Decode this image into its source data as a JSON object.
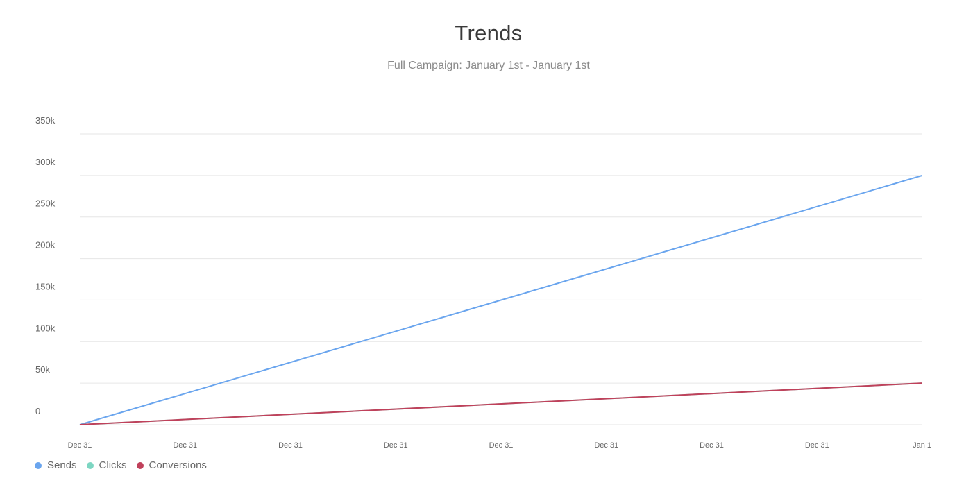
{
  "chart_data": {
    "type": "line",
    "title": "Trends",
    "subtitle": "Full Campaign: January 1st - January 1st",
    "xlabel": "",
    "ylabel": "",
    "x_tick_labels": [
      "Dec 31",
      "Dec 31",
      "Dec 31",
      "Dec 31",
      "Dec 31",
      "Dec 31",
      "Dec 31",
      "Dec 31",
      "Jan 1"
    ],
    "x": [
      0,
      1
    ],
    "ylim": [
      0,
      350000
    ],
    "y_ticks": [
      0,
      50000,
      100000,
      150000,
      200000,
      250000,
      300000,
      350000
    ],
    "y_tick_labels": [
      "0",
      "50k",
      "100k",
      "150k",
      "200k",
      "250k",
      "300k",
      "350k"
    ],
    "grid": true,
    "legend_position": "bottom-left",
    "series": [
      {
        "name": "Sends",
        "color": "#6aa5ee",
        "values": [
          0,
          300000
        ]
      },
      {
        "name": "Clicks",
        "color": "#7dd6c2",
        "values": [
          0,
          50000
        ]
      },
      {
        "name": "Conversions",
        "color": "#c0415b",
        "values": [
          0,
          50000
        ]
      }
    ]
  }
}
